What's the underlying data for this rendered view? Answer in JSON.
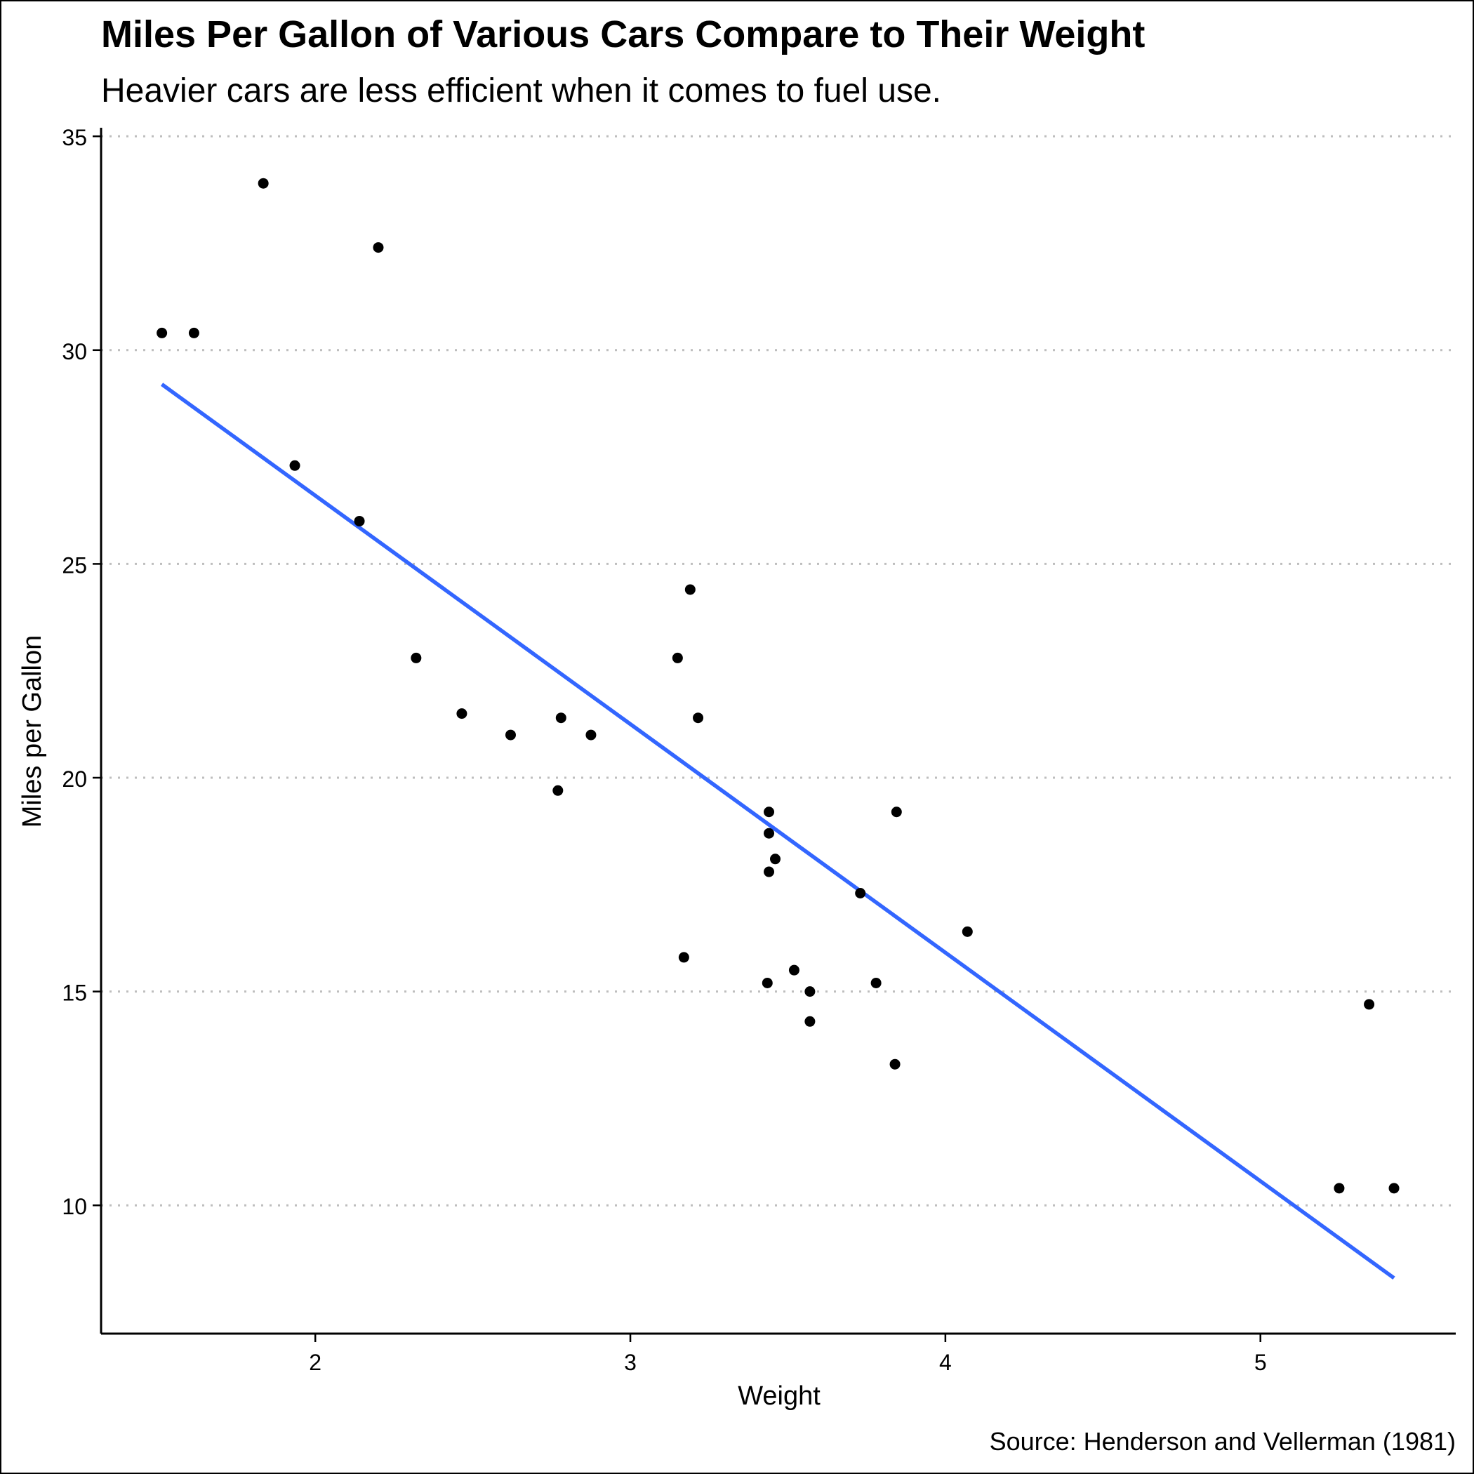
{
  "chart_data": {
    "type": "scatter",
    "title": "Miles Per Gallon of Various Cars Compare to Their Weight",
    "subtitle": "Heavier cars are less efficient when it comes to fuel use.",
    "caption": "Source: Henderson and Vellerman (1981)",
    "xlabel": "Weight",
    "ylabel": "Miles per Gallon",
    "xlim": [
      1.32,
      5.62
    ],
    "ylim": [
      7.0,
      35.2
    ],
    "xticks": [
      2,
      3,
      4,
      5
    ],
    "yticks": [
      10,
      15,
      20,
      25,
      30,
      35
    ],
    "grid": "horizontal-dotted",
    "colors": {
      "points": "#000000",
      "trend": "#3366FF",
      "grid": "#BEBEBE"
    },
    "points": [
      {
        "x": 2.62,
        "y": 21.0
      },
      {
        "x": 2.875,
        "y": 21.0
      },
      {
        "x": 2.32,
        "y": 22.8
      },
      {
        "x": 3.215,
        "y": 21.4
      },
      {
        "x": 3.44,
        "y": 18.7
      },
      {
        "x": 3.46,
        "y": 18.1
      },
      {
        "x": 3.57,
        "y": 14.3
      },
      {
        "x": 3.19,
        "y": 24.4
      },
      {
        "x": 3.15,
        "y": 22.8
      },
      {
        "x": 3.44,
        "y": 19.2
      },
      {
        "x": 3.44,
        "y": 17.8
      },
      {
        "x": 4.07,
        "y": 16.4
      },
      {
        "x": 3.73,
        "y": 17.3
      },
      {
        "x": 3.78,
        "y": 15.2
      },
      {
        "x": 5.25,
        "y": 10.4
      },
      {
        "x": 5.424,
        "y": 10.4
      },
      {
        "x": 5.345,
        "y": 14.7
      },
      {
        "x": 2.2,
        "y": 32.4
      },
      {
        "x": 1.615,
        "y": 30.4
      },
      {
        "x": 1.835,
        "y": 33.9
      },
      {
        "x": 2.465,
        "y": 21.5
      },
      {
        "x": 3.52,
        "y": 15.5
      },
      {
        "x": 3.435,
        "y": 15.2
      },
      {
        "x": 3.84,
        "y": 13.3
      },
      {
        "x": 3.845,
        "y": 19.2
      },
      {
        "x": 1.935,
        "y": 27.3
      },
      {
        "x": 2.14,
        "y": 26.0
      },
      {
        "x": 1.513,
        "y": 30.4
      },
      {
        "x": 3.17,
        "y": 15.8
      },
      {
        "x": 2.77,
        "y": 19.7
      },
      {
        "x": 3.57,
        "y": 15.0
      },
      {
        "x": 2.78,
        "y": 21.4
      }
    ],
    "trend_line": {
      "x": [
        1.513,
        5.424
      ],
      "y": [
        29.2,
        8.3
      ]
    }
  }
}
